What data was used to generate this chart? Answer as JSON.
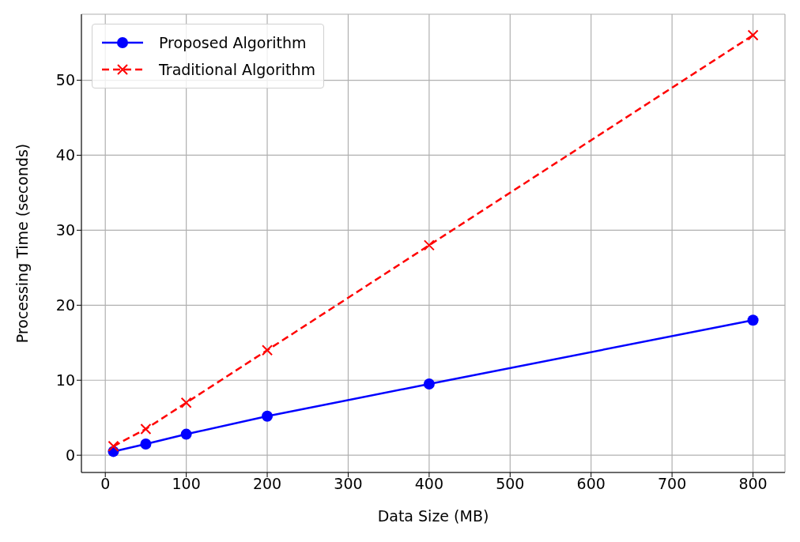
{
  "chart_data": {
    "type": "line",
    "xlabel": "Data Size (MB)",
    "ylabel": "Processing Time (seconds)",
    "x": [
      10,
      50,
      100,
      200,
      400,
      800
    ],
    "series": [
      {
        "name": "Proposed Algorithm",
        "color": "#0000ff",
        "values": [
          0.5,
          1.5,
          2.8,
          5.2,
          9.5,
          18.0
        ],
        "marker": "circle",
        "line_style": "solid"
      },
      {
        "name": "Traditional Algorithm",
        "color": "#ff0000",
        "values": [
          1.2,
          3.5,
          7.0,
          14.0,
          28.0,
          56.0
        ],
        "marker": "cross",
        "line_style": "dashed"
      }
    ],
    "xlim": [
      -29.5,
      839.5
    ],
    "xticks": [
      0,
      100,
      200,
      300,
      400,
      500,
      600,
      700,
      800
    ],
    "ylim": [
      -2.3,
      58.8
    ],
    "yticks": [
      0,
      10,
      20,
      30,
      40,
      50
    ],
    "grid": true,
    "legend": "top left"
  }
}
